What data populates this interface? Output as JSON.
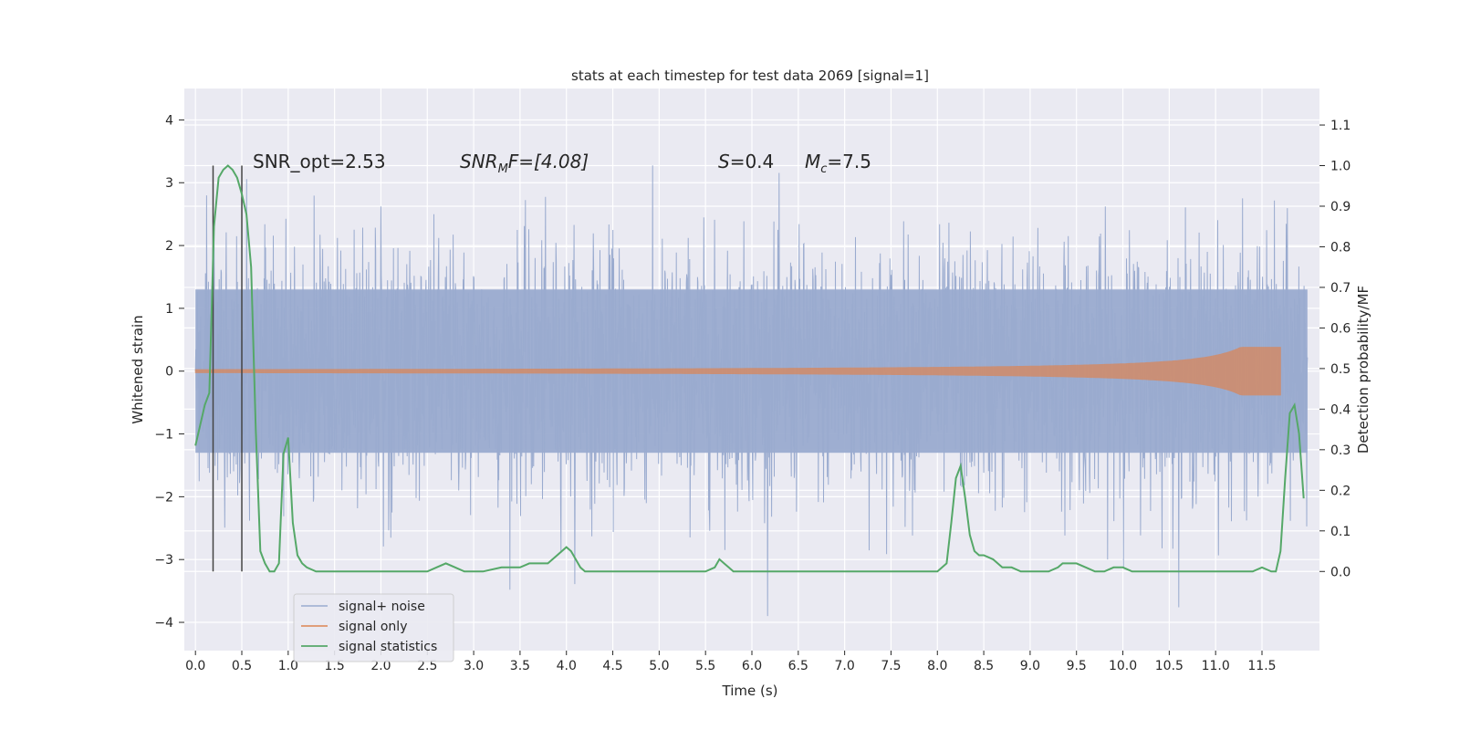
{
  "colors": {
    "plot_bg": "#eaeaf2",
    "grid": "#ffffff",
    "noise": "#9aabcf",
    "signal": "#dd8452",
    "stats": "#55a868",
    "marker": "#444444",
    "text": "#262626"
  },
  "chart_data": {
    "type": "line",
    "title": "stats at each timestep for test data 2069 [signal=1]",
    "xlabel": "Time (s)",
    "ylabel_left": "Whitened strain",
    "ylabel_right": "Detection probability/MF",
    "xlim": [
      -0.12,
      12.12
    ],
    "ylim_left": [
      -4.45,
      4.5
    ],
    "ylim_right": [
      -0.195,
      1.19
    ],
    "x_ticks": [
      "0.0",
      "0.5",
      "1.0",
      "1.5",
      "2.0",
      "2.5",
      "3.0",
      "3.5",
      "4.0",
      "4.5",
      "5.0",
      "5.5",
      "6.0",
      "6.5",
      "7.0",
      "7.5",
      "8.0",
      "8.5",
      "9.0",
      "9.5",
      "10.0",
      "10.5",
      "11.0",
      "11.5"
    ],
    "x_tick_values": [
      0.0,
      0.5,
      1.0,
      1.5,
      2.0,
      2.5,
      3.0,
      3.5,
      4.0,
      4.5,
      5.0,
      5.5,
      6.0,
      6.5,
      7.0,
      7.5,
      8.0,
      8.5,
      9.0,
      9.5,
      10.0,
      10.5,
      11.0,
      11.5
    ],
    "y_ticks_left": [
      "4",
      "3",
      "2",
      "1",
      "0",
      "−1",
      "−2",
      "−3",
      "−4"
    ],
    "y_tick_values_left": [
      4,
      3,
      2,
      1,
      0,
      -1,
      -2,
      -3,
      -4
    ],
    "y_ticks_right": [
      "1.1",
      "1.0",
      "0.9",
      "0.8",
      "0.7",
      "0.6",
      "0.5",
      "0.4",
      "0.3",
      "0.2",
      "0.1",
      "0.0"
    ],
    "y_tick_values_right": [
      1.1,
      1.0,
      0.9,
      0.8,
      0.7,
      0.6,
      0.5,
      0.4,
      0.3,
      0.2,
      0.1,
      0.0
    ],
    "grid": true,
    "legend_position": "lower-left",
    "legend": [
      "signal+ noise",
      "signal only",
      "signal statistics"
    ],
    "annotations": {
      "snr_opt": "SNR_opt=2.53",
      "snr_mf_main": "SNR",
      "snr_mf_sub": "M",
      "snr_mf_rest": "F=[4.08]",
      "s_italic": "S",
      "s_rest": "=0.4",
      "mc_main": "M",
      "mc_sub": "c",
      "mc_rest": "=7.5"
    },
    "markers_x": [
      0.19,
      0.5
    ],
    "signal_statistics": {
      "x": [
        0.0,
        0.05,
        0.1,
        0.15,
        0.2,
        0.25,
        0.3,
        0.35,
        0.4,
        0.45,
        0.5,
        0.55,
        0.6,
        0.65,
        0.7,
        0.75,
        0.8,
        0.85,
        0.9,
        0.95,
        1.0,
        1.05,
        1.1,
        1.15,
        1.2,
        1.3,
        1.4,
        1.5,
        1.7,
        2.0,
        2.3,
        2.5,
        2.6,
        2.7,
        2.8,
        2.9,
        3.0,
        3.1,
        3.3,
        3.5,
        3.6,
        3.7,
        3.8,
        3.9,
        4.0,
        4.05,
        4.1,
        4.15,
        4.2,
        4.3,
        4.5,
        5.0,
        5.5,
        5.6,
        5.65,
        5.7,
        5.75,
        5.8,
        5.9,
        6.0,
        6.5,
        7.0,
        7.5,
        8.0,
        8.1,
        8.15,
        8.2,
        8.25,
        8.3,
        8.35,
        8.4,
        8.45,
        8.5,
        8.6,
        8.7,
        8.8,
        8.9,
        9.0,
        9.1,
        9.2,
        9.3,
        9.35,
        9.4,
        9.5,
        9.6,
        9.7,
        9.8,
        9.9,
        10.0,
        10.1,
        10.2,
        10.3,
        10.5,
        11.0,
        11.4,
        11.5,
        11.6,
        11.65,
        11.7,
        11.75,
        11.8,
        11.85,
        11.9,
        11.95
      ],
      "y": [
        0.31,
        0.36,
        0.41,
        0.44,
        0.85,
        0.97,
        0.99,
        1.0,
        0.99,
        0.97,
        0.93,
        0.88,
        0.75,
        0.35,
        0.05,
        0.02,
        0.0,
        0.0,
        0.02,
        0.29,
        0.33,
        0.12,
        0.04,
        0.02,
        0.01,
        0.0,
        0.0,
        0.0,
        0.0,
        0.0,
        0.0,
        0.0,
        0.01,
        0.02,
        0.01,
        0.0,
        0.0,
        0.0,
        0.01,
        0.01,
        0.02,
        0.02,
        0.02,
        0.04,
        0.06,
        0.05,
        0.03,
        0.01,
        0.0,
        0.0,
        0.0,
        0.0,
        0.0,
        0.01,
        0.03,
        0.02,
        0.01,
        0.0,
        0.0,
        0.0,
        0.0,
        0.0,
        0.0,
        0.0,
        0.02,
        0.12,
        0.23,
        0.26,
        0.18,
        0.09,
        0.05,
        0.04,
        0.04,
        0.03,
        0.01,
        0.01,
        0.0,
        0.0,
        0.0,
        0.0,
        0.01,
        0.02,
        0.02,
        0.02,
        0.01,
        0.0,
        0.0,
        0.01,
        0.01,
        0.0,
        0.0,
        0.0,
        0.0,
        0.0,
        0.0,
        0.01,
        0.0,
        0.0,
        0.05,
        0.23,
        0.39,
        0.41,
        0.34,
        0.18
      ]
    }
  }
}
